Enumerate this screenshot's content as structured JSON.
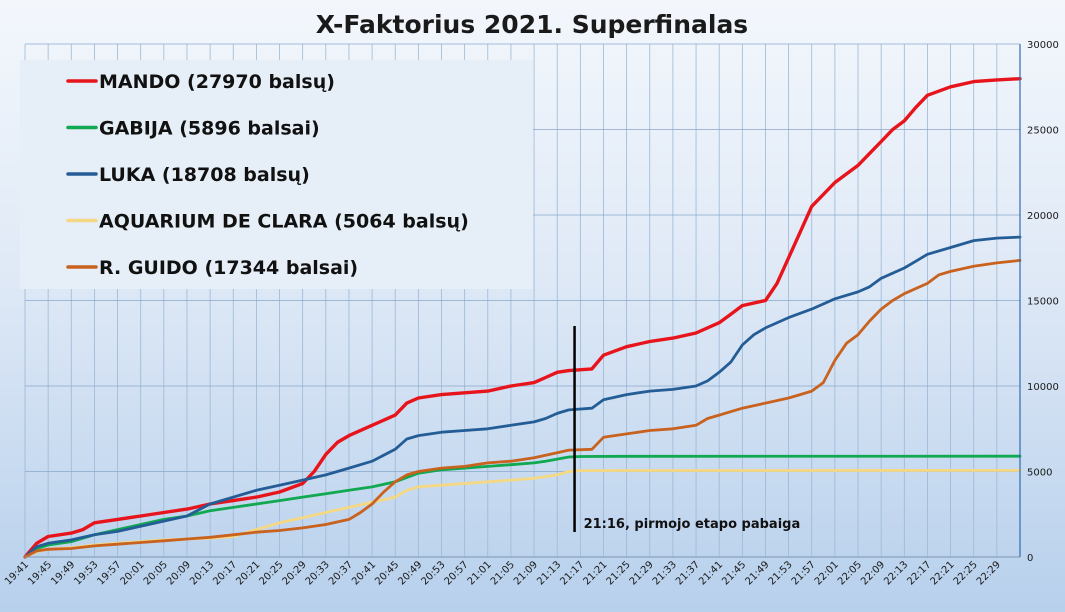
{
  "chart_data": {
    "type": "line",
    "title": "X-Faktorius 2021. Superfinalas",
    "xlabel": "",
    "ylabel": "",
    "ylim": [
      0,
      30000
    ],
    "yticks": [
      "0",
      "5000",
      "10000",
      "15000",
      "20000",
      "25000",
      "30000"
    ],
    "y_axis_side": "right",
    "grid": true,
    "legend_position": "top-left",
    "x_range": [
      "19:41",
      "22:33"
    ],
    "x_ticks": [
      "19:41",
      "19:45",
      "19:49",
      "19:53",
      "19:57",
      "20:01",
      "20:05",
      "20:09",
      "20:13",
      "20:17",
      "20:21",
      "20:25",
      "20:29",
      "20:33",
      "20:37",
      "20:41",
      "20:45",
      "20:49",
      "20:53",
      "20:57",
      "21:01",
      "21:05",
      "21:09",
      "21:13",
      "21:17",
      "21:21",
      "21:25",
      "21:29",
      "21:33",
      "21:37",
      "21:41",
      "21:45",
      "21:49",
      "21:53",
      "21:57",
      "22:01",
      "22:05",
      "22:09",
      "22:13",
      "22:17",
      "22:21",
      "22:25",
      "22:29"
    ],
    "annotations": [
      {
        "x": "21:16",
        "text": "21:16, pirmojo etapo pabaiga"
      }
    ],
    "series": [
      {
        "name": "MANDO (27970 balsų)",
        "color": "#e8141c",
        "points": [
          [
            "19:41",
            0
          ],
          [
            "19:43",
            800
          ],
          [
            "19:45",
            1200
          ],
          [
            "19:49",
            1400
          ],
          [
            "19:51",
            1600
          ],
          [
            "19:53",
            2000
          ],
          [
            "19:57",
            2200
          ],
          [
            "20:01",
            2400
          ],
          [
            "20:05",
            2600
          ],
          [
            "20:09",
            2800
          ],
          [
            "20:13",
            3100
          ],
          [
            "20:17",
            3300
          ],
          [
            "20:21",
            3500
          ],
          [
            "20:25",
            3800
          ],
          [
            "20:29",
            4300
          ],
          [
            "20:31",
            5000
          ],
          [
            "20:33",
            6000
          ],
          [
            "20:35",
            6700
          ],
          [
            "20:37",
            7100
          ],
          [
            "20:41",
            7700
          ],
          [
            "20:45",
            8300
          ],
          [
            "20:47",
            9000
          ],
          [
            "20:49",
            9300
          ],
          [
            "20:53",
            9500
          ],
          [
            "20:57",
            9600
          ],
          [
            "21:01",
            9700
          ],
          [
            "21:05",
            10000
          ],
          [
            "21:09",
            10200
          ],
          [
            "21:11",
            10500
          ],
          [
            "21:13",
            10800
          ],
          [
            "21:15",
            10900
          ],
          [
            "21:19",
            11000
          ],
          [
            "21:21",
            11800
          ],
          [
            "21:25",
            12300
          ],
          [
            "21:29",
            12600
          ],
          [
            "21:33",
            12800
          ],
          [
            "21:37",
            13100
          ],
          [
            "21:41",
            13700
          ],
          [
            "21:43",
            14200
          ],
          [
            "21:45",
            14700
          ],
          [
            "21:49",
            15000
          ],
          [
            "21:51",
            16000
          ],
          [
            "21:53",
            17500
          ],
          [
            "21:55",
            19000
          ],
          [
            "21:57",
            20500
          ],
          [
            "22:01",
            21900
          ],
          [
            "22:05",
            22900
          ],
          [
            "22:07",
            23600
          ],
          [
            "22:09",
            24300
          ],
          [
            "22:11",
            25000
          ],
          [
            "22:13",
            25500
          ],
          [
            "22:15",
            26300
          ],
          [
            "22:17",
            27000
          ],
          [
            "22:21",
            27500
          ],
          [
            "22:25",
            27800
          ],
          [
            "22:29",
            27900
          ],
          [
            "22:33",
            27970
          ]
        ]
      },
      {
        "name": "GABIJA (5896 balsai)",
        "color": "#10a850",
        "points": [
          [
            "19:41",
            0
          ],
          [
            "19:43",
            500
          ],
          [
            "19:45",
            700
          ],
          [
            "19:49",
            900
          ],
          [
            "19:53",
            1300
          ],
          [
            "19:57",
            1600
          ],
          [
            "20:01",
            1900
          ],
          [
            "20:05",
            2200
          ],
          [
            "20:09",
            2400
          ],
          [
            "20:13",
            2700
          ],
          [
            "20:17",
            2900
          ],
          [
            "20:21",
            3100
          ],
          [
            "20:25",
            3300
          ],
          [
            "20:29",
            3500
          ],
          [
            "20:33",
            3700
          ],
          [
            "20:37",
            3900
          ],
          [
            "20:41",
            4100
          ],
          [
            "20:45",
            4400
          ],
          [
            "20:49",
            4900
          ],
          [
            "20:53",
            5100
          ],
          [
            "20:57",
            5200
          ],
          [
            "21:01",
            5300
          ],
          [
            "21:05",
            5400
          ],
          [
            "21:09",
            5500
          ],
          [
            "21:11",
            5600
          ],
          [
            "21:15",
            5850
          ],
          [
            "21:17",
            5880
          ],
          [
            "21:25",
            5890
          ],
          [
            "22:33",
            5896
          ]
        ]
      },
      {
        "name": "LUKA (18708 balsų)",
        "color": "#245d96",
        "points": [
          [
            "19:41",
            0
          ],
          [
            "19:43",
            600
          ],
          [
            "19:45",
            800
          ],
          [
            "19:49",
            1000
          ],
          [
            "19:53",
            1300
          ],
          [
            "19:57",
            1500
          ],
          [
            "20:01",
            1800
          ],
          [
            "20:05",
            2100
          ],
          [
            "20:09",
            2400
          ],
          [
            "20:13",
            3100
          ],
          [
            "20:17",
            3500
          ],
          [
            "20:21",
            3900
          ],
          [
            "20:25",
            4200
          ],
          [
            "20:29",
            4500
          ],
          [
            "20:33",
            4800
          ],
          [
            "20:37",
            5200
          ],
          [
            "20:41",
            5600
          ],
          [
            "20:45",
            6300
          ],
          [
            "20:47",
            6900
          ],
          [
            "20:49",
            7100
          ],
          [
            "20:53",
            7300
          ],
          [
            "20:57",
            7400
          ],
          [
            "21:01",
            7500
          ],
          [
            "21:05",
            7700
          ],
          [
            "21:09",
            7900
          ],
          [
            "21:11",
            8100
          ],
          [
            "21:13",
            8400
          ],
          [
            "21:15",
            8600
          ],
          [
            "21:19",
            8700
          ],
          [
            "21:21",
            9200
          ],
          [
            "21:25",
            9500
          ],
          [
            "21:29",
            9700
          ],
          [
            "21:33",
            9800
          ],
          [
            "21:37",
            10000
          ],
          [
            "21:39",
            10300
          ],
          [
            "21:41",
            10800
          ],
          [
            "21:43",
            11400
          ],
          [
            "21:45",
            12400
          ],
          [
            "21:47",
            13000
          ],
          [
            "21:49",
            13400
          ],
          [
            "21:53",
            14000
          ],
          [
            "21:57",
            14500
          ],
          [
            "22:01",
            15100
          ],
          [
            "22:05",
            15500
          ],
          [
            "22:07",
            15800
          ],
          [
            "22:09",
            16300
          ],
          [
            "22:13",
            16900
          ],
          [
            "22:15",
            17300
          ],
          [
            "22:17",
            17700
          ],
          [
            "22:21",
            18100
          ],
          [
            "22:25",
            18500
          ],
          [
            "22:29",
            18650
          ],
          [
            "22:33",
            18708
          ]
        ]
      },
      {
        "name": "AQUARIUM DE CLARA (5064 balsų)",
        "color": "#f5d883",
        "points": [
          [
            "19:41",
            0
          ],
          [
            "19:43",
            300
          ],
          [
            "19:45",
            450
          ],
          [
            "19:49",
            550
          ],
          [
            "19:53",
            700
          ],
          [
            "19:57",
            800
          ],
          [
            "20:01",
            900
          ],
          [
            "20:05",
            1000
          ],
          [
            "20:09",
            1050
          ],
          [
            "20:13",
            1100
          ],
          [
            "20:17",
            1200
          ],
          [
            "20:21",
            1600
          ],
          [
            "20:25",
            2000
          ],
          [
            "20:29",
            2300
          ],
          [
            "20:33",
            2600
          ],
          [
            "20:37",
            2900
          ],
          [
            "20:41",
            3200
          ],
          [
            "20:45",
            3500
          ],
          [
            "20:47",
            3900
          ],
          [
            "20:49",
            4100
          ],
          [
            "20:53",
            4200
          ],
          [
            "20:57",
            4300
          ],
          [
            "21:01",
            4400
          ],
          [
            "21:05",
            4500
          ],
          [
            "21:09",
            4600
          ],
          [
            "21:13",
            4800
          ],
          [
            "21:15",
            5000
          ],
          [
            "21:17",
            5050
          ],
          [
            "21:25",
            5060
          ],
          [
            "22:33",
            5064
          ]
        ]
      },
      {
        "name": "R. GUIDO (17344 balsai)",
        "color": "#c8621e",
        "points": [
          [
            "19:41",
            0
          ],
          [
            "19:43",
            350
          ],
          [
            "19:45",
            450
          ],
          [
            "19:49",
            500
          ],
          [
            "19:53",
            650
          ],
          [
            "19:57",
            750
          ],
          [
            "20:01",
            850
          ],
          [
            "20:05",
            950
          ],
          [
            "20:09",
            1050
          ],
          [
            "20:13",
            1150
          ],
          [
            "20:17",
            1300
          ],
          [
            "20:21",
            1450
          ],
          [
            "20:25",
            1550
          ],
          [
            "20:29",
            1700
          ],
          [
            "20:33",
            1900
          ],
          [
            "20:37",
            2200
          ],
          [
            "20:39",
            2600
          ],
          [
            "20:41",
            3100
          ],
          [
            "20:43",
            3800
          ],
          [
            "20:45",
            4400
          ],
          [
            "20:47",
            4800
          ],
          [
            "20:49",
            5000
          ],
          [
            "20:53",
            5200
          ],
          [
            "20:57",
            5300
          ],
          [
            "21:01",
            5500
          ],
          [
            "21:05",
            5600
          ],
          [
            "21:09",
            5800
          ],
          [
            "21:13",
            6100
          ],
          [
            "21:15",
            6250
          ],
          [
            "21:19",
            6300
          ],
          [
            "21:21",
            7000
          ],
          [
            "21:25",
            7200
          ],
          [
            "21:29",
            7400
          ],
          [
            "21:33",
            7500
          ],
          [
            "21:37",
            7700
          ],
          [
            "21:39",
            8100
          ],
          [
            "21:41",
            8300
          ],
          [
            "21:45",
            8700
          ],
          [
            "21:49",
            9000
          ],
          [
            "21:53",
            9300
          ],
          [
            "21:55",
            9500
          ],
          [
            "21:57",
            9700
          ],
          [
            "21:59",
            10200
          ],
          [
            "22:01",
            11500
          ],
          [
            "22:03",
            12500
          ],
          [
            "22:05",
            13000
          ],
          [
            "22:07",
            13800
          ],
          [
            "22:09",
            14500
          ],
          [
            "22:11",
            15000
          ],
          [
            "22:13",
            15400
          ],
          [
            "22:17",
            16000
          ],
          [
            "22:19",
            16500
          ],
          [
            "22:21",
            16700
          ],
          [
            "22:25",
            17000
          ],
          [
            "22:29",
            17200
          ],
          [
            "22:33",
            17344
          ]
        ]
      }
    ]
  }
}
